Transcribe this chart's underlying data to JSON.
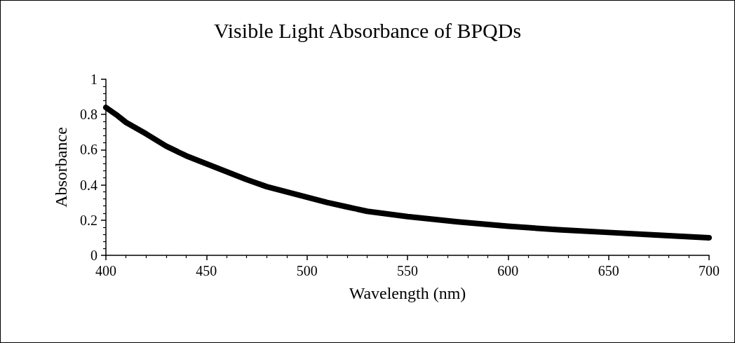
{
  "chart_data": {
    "type": "line",
    "title": "Visible Light Absorbance of BPQDs",
    "xlabel": "Wavelength (nm)",
    "ylabel": "Absorbance",
    "x": [
      400,
      405,
      410,
      420,
      430,
      440,
      450,
      460,
      470,
      480,
      490,
      500,
      510,
      520,
      530,
      540,
      550,
      575,
      600,
      625,
      650,
      675,
      700
    ],
    "series": [
      {
        "color": "#000000",
        "values": [
          0.84,
          0.8,
          0.755,
          0.69,
          0.62,
          0.565,
          0.52,
          0.475,
          0.43,
          0.39,
          0.36,
          0.33,
          0.3,
          0.275,
          0.25,
          0.235,
          0.22,
          0.19,
          0.165,
          0.145,
          0.13,
          0.115,
          0.1
        ]
      }
    ],
    "xlim": [
      400,
      700
    ],
    "xticks": [
      400,
      450,
      500,
      550,
      600,
      650,
      700
    ],
    "ylim": [
      0,
      1
    ],
    "yticks": [
      0,
      0.2,
      0.4,
      0.6,
      0.8,
      1
    ],
    "grid": false,
    "marker": "none",
    "line_style": "solid"
  }
}
